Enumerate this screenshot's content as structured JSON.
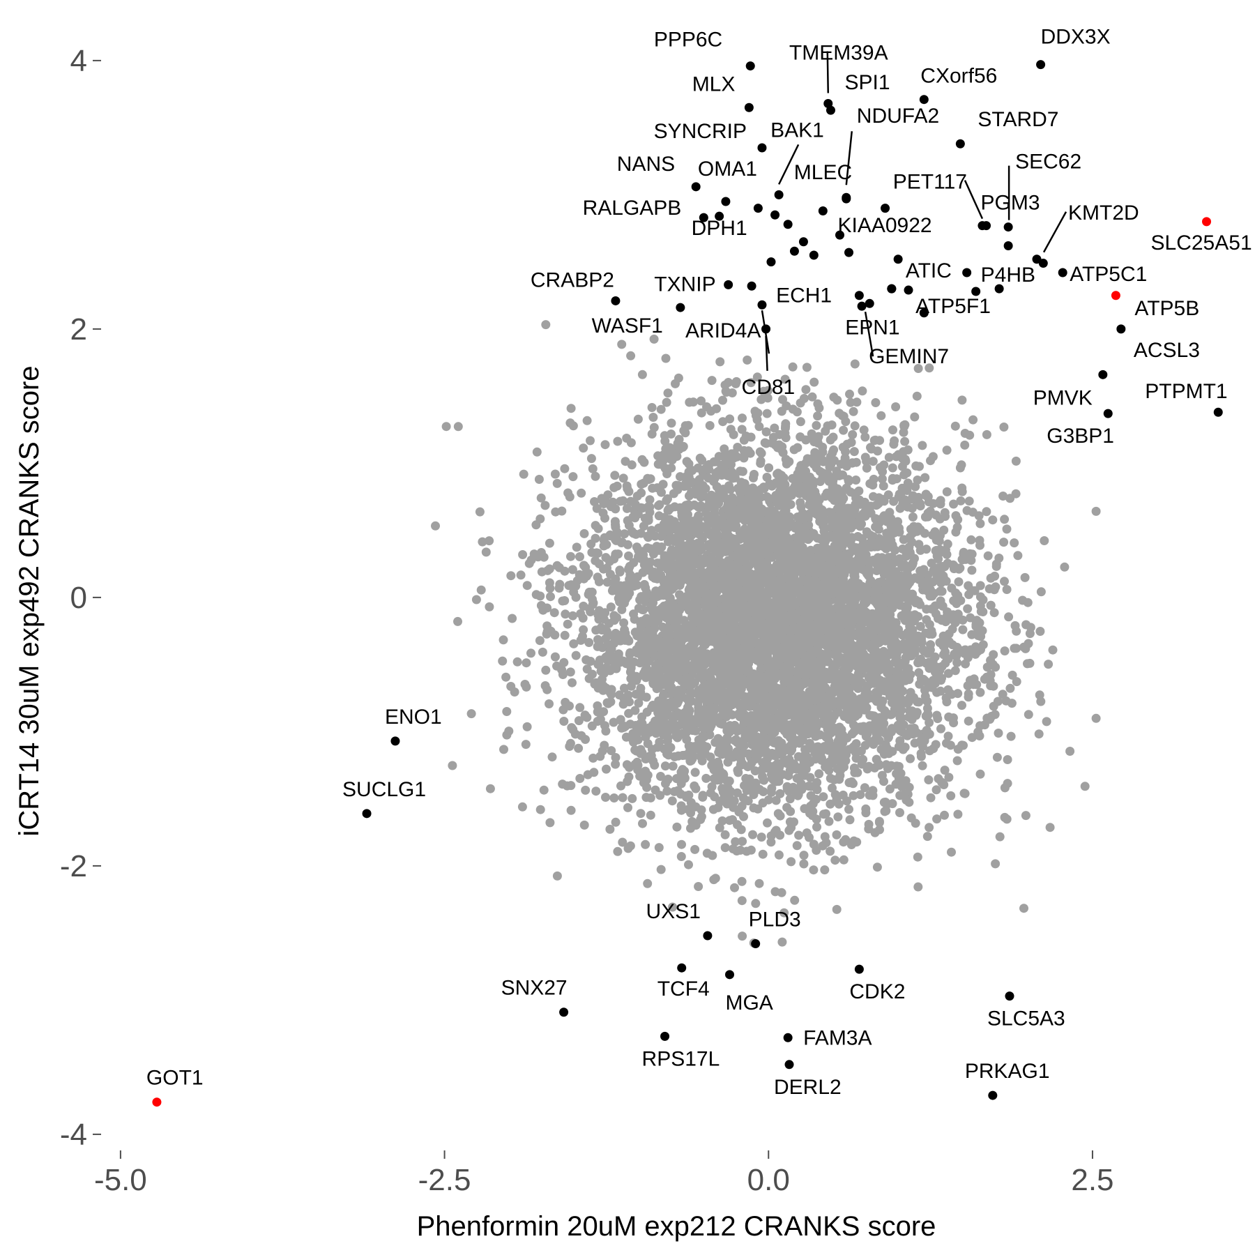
{
  "chart_data": {
    "type": "scatter",
    "xlabel": "Phenformin 20uM exp212 CRANKS score",
    "ylabel": "iCRT14 30uM exp492 CRANKS score",
    "xlim": [
      -5.15,
      3.7
    ],
    "ylim": [
      -4.12,
      4.15
    ],
    "x_ticks": [
      -5.0,
      -2.5,
      0.0,
      2.5
    ],
    "x_tick_labels": [
      "-5.0",
      "-2.5",
      "0.0",
      "2.5"
    ],
    "y_ticks": [
      -4,
      -2,
      0,
      2,
      4
    ],
    "y_tick_labels": [
      "-4",
      "-2",
      "0",
      "2",
      "4"
    ],
    "grid": false,
    "colors": {
      "background": "#ffffff",
      "background_points": "#a0a0a0",
      "highlight": "#000000",
      "special": "#ff0000"
    },
    "background_cloud": {
      "description_free_params": true,
      "center": [
        0.05,
        -0.2
      ],
      "sd": [
        0.75,
        0.7
      ],
      "n": 6000,
      "seed": 7
    },
    "points": [
      {
        "label": "PPP6C",
        "x": -0.14,
        "y": 3.96,
        "color": "#000000"
      },
      {
        "label": "TMEM39A",
        "x": 0.46,
        "y": 3.68,
        "color": "#000000"
      },
      {
        "label": "DDX3X",
        "x": 2.1,
        "y": 3.97,
        "color": "#000000"
      },
      {
        "label": "MLX",
        "x": -0.15,
        "y": 3.65,
        "color": "#000000"
      },
      {
        "label": "SPI1",
        "x": 0.48,
        "y": 3.63,
        "color": "#000000"
      },
      {
        "label": "CXorf56",
        "x": 1.2,
        "y": 3.71,
        "color": "#000000"
      },
      {
        "label": "SYNCRIP",
        "x": -0.05,
        "y": 3.35,
        "color": "#000000"
      },
      {
        "label": "BAK1",
        "x": 0.08,
        "y": 3.0,
        "color": "#000000"
      },
      {
        "label": "NDUFA2",
        "x": 0.6,
        "y": 2.98,
        "color": "#000000"
      },
      {
        "label": "STARD7",
        "x": 1.48,
        "y": 3.38,
        "color": "#000000"
      },
      {
        "label": "NANS",
        "x": -0.56,
        "y": 3.06,
        "color": "#000000"
      },
      {
        "label": "OMA1",
        "x": -0.33,
        "y": 2.95,
        "color": "#000000"
      },
      {
        "label": "MLEC",
        "x": 0.6,
        "y": 2.97,
        "color": "#000000"
      },
      {
        "label": "PET117",
        "x": 1.65,
        "y": 2.77,
        "color": "#000000"
      },
      {
        "label": "SEC62",
        "x": 1.85,
        "y": 2.76,
        "color": "#000000"
      },
      {
        "label": "RALGAPB",
        "x": -0.5,
        "y": 2.83,
        "color": "#000000"
      },
      {
        "label": "PGM3",
        "x": 1.68,
        "y": 2.77,
        "color": "#000000"
      },
      {
        "label": "KMT2D",
        "x": 2.07,
        "y": 2.52,
        "color": "#000000"
      },
      {
        "label": "SLC25A51",
        "x": 3.38,
        "y": 2.8,
        "color": "#ff0000"
      },
      {
        "label": "KIAA0922",
        "x": 0.55,
        "y": 2.7,
        "color": "#000000"
      },
      {
        "label": "DPH1",
        "x": -0.38,
        "y": 2.84,
        "color": "#000000"
      },
      {
        "label": "ATIC",
        "x": 0.95,
        "y": 2.3,
        "color": "#000000"
      },
      {
        "label": "P4HB",
        "x": 1.53,
        "y": 2.42,
        "color": "#000000"
      },
      {
        "label": "ATP5C1",
        "x": 2.27,
        "y": 2.42,
        "color": "#000000"
      },
      {
        "label": "CRABP2",
        "x": -1.18,
        "y": 2.21,
        "color": "#000000"
      },
      {
        "label": "TXNIP",
        "x": -0.31,
        "y": 2.33,
        "color": "#000000"
      },
      {
        "label": "ECH1",
        "x": -0.13,
        "y": 2.32,
        "color": "#000000"
      },
      {
        "label": "ATP5B",
        "x": 2.68,
        "y": 2.25,
        "color": "#ff0000"
      },
      {
        "label": "WASF1",
        "x": -0.68,
        "y": 2.16,
        "color": "#000000"
      },
      {
        "label": "ARID4A",
        "x": -0.05,
        "y": 2.18,
        "color": "#000000"
      },
      {
        "label": "EPN1",
        "x": 0.78,
        "y": 2.19,
        "color": "#000000"
      },
      {
        "label": "ATP5F1",
        "x": 1.78,
        "y": 2.3,
        "color": "#000000"
      },
      {
        "label": "GEMIN7",
        "x": 0.72,
        "y": 2.17,
        "color": "#000000"
      },
      {
        "label": "CD81",
        "x": -0.02,
        "y": 2.0,
        "color": "#000000"
      },
      {
        "label": "ACSL3",
        "x": 2.72,
        "y": 2.0,
        "color": "#000000"
      },
      {
        "label": "PMVK",
        "x": 2.58,
        "y": 1.66,
        "color": "#000000"
      },
      {
        "label": "PTPMT1",
        "x": 3.47,
        "y": 1.38,
        "color": "#000000"
      },
      {
        "label": "G3BP1",
        "x": 2.62,
        "y": 1.37,
        "color": "#000000"
      },
      {
        "label": "ENO1",
        "x": -2.88,
        "y": -1.07,
        "color": "#000000"
      },
      {
        "label": "SUCLG1",
        "x": -3.1,
        "y": -1.61,
        "color": "#000000"
      },
      {
        "label": "UXS1",
        "x": -0.47,
        "y": -2.52,
        "color": "#000000"
      },
      {
        "label": "PLD3",
        "x": -0.1,
        "y": -2.58,
        "color": "#000000"
      },
      {
        "label": "TCF4",
        "x": -0.67,
        "y": -2.76,
        "color": "#000000"
      },
      {
        "label": "MGA",
        "x": -0.3,
        "y": -2.81,
        "color": "#000000"
      },
      {
        "label": "CDK2",
        "x": 0.7,
        "y": -2.77,
        "color": "#000000"
      },
      {
        "label": "SNX27",
        "x": -1.58,
        "y": -3.09,
        "color": "#000000"
      },
      {
        "label": "SLC5A3",
        "x": 1.86,
        "y": -2.97,
        "color": "#000000"
      },
      {
        "label": "RPS17L",
        "x": -0.8,
        "y": -3.27,
        "color": "#000000"
      },
      {
        "label": "FAM3A",
        "x": 0.15,
        "y": -3.28,
        "color": "#000000"
      },
      {
        "label": "DERL2",
        "x": 0.16,
        "y": -3.48,
        "color": "#000000"
      },
      {
        "label": "PRKAG1",
        "x": 1.73,
        "y": -3.71,
        "color": "#000000"
      },
      {
        "label": "GOT1",
        "x": -4.72,
        "y": -3.76,
        "color": "#ff0000"
      }
    ],
    "extra_highlight_points": [
      [
        -0.08,
        2.9
      ],
      [
        0.02,
        2.5
      ],
      [
        0.2,
        2.58
      ],
      [
        0.27,
        2.65
      ],
      [
        0.35,
        2.55
      ],
      [
        0.42,
        2.88
      ],
      [
        0.62,
        2.57
      ],
      [
        0.9,
        2.9
      ],
      [
        1.0,
        2.52
      ],
      [
        1.08,
        2.29
      ],
      [
        1.2,
        2.12
      ],
      [
        1.6,
        2.28
      ],
      [
        1.85,
        2.62
      ],
      [
        2.12,
        2.49
      ],
      [
        0.15,
        2.78
      ],
      [
        0.05,
        2.85
      ],
      [
        0.7,
        2.25
      ],
      [
        0.95,
        2.3
      ]
    ]
  }
}
